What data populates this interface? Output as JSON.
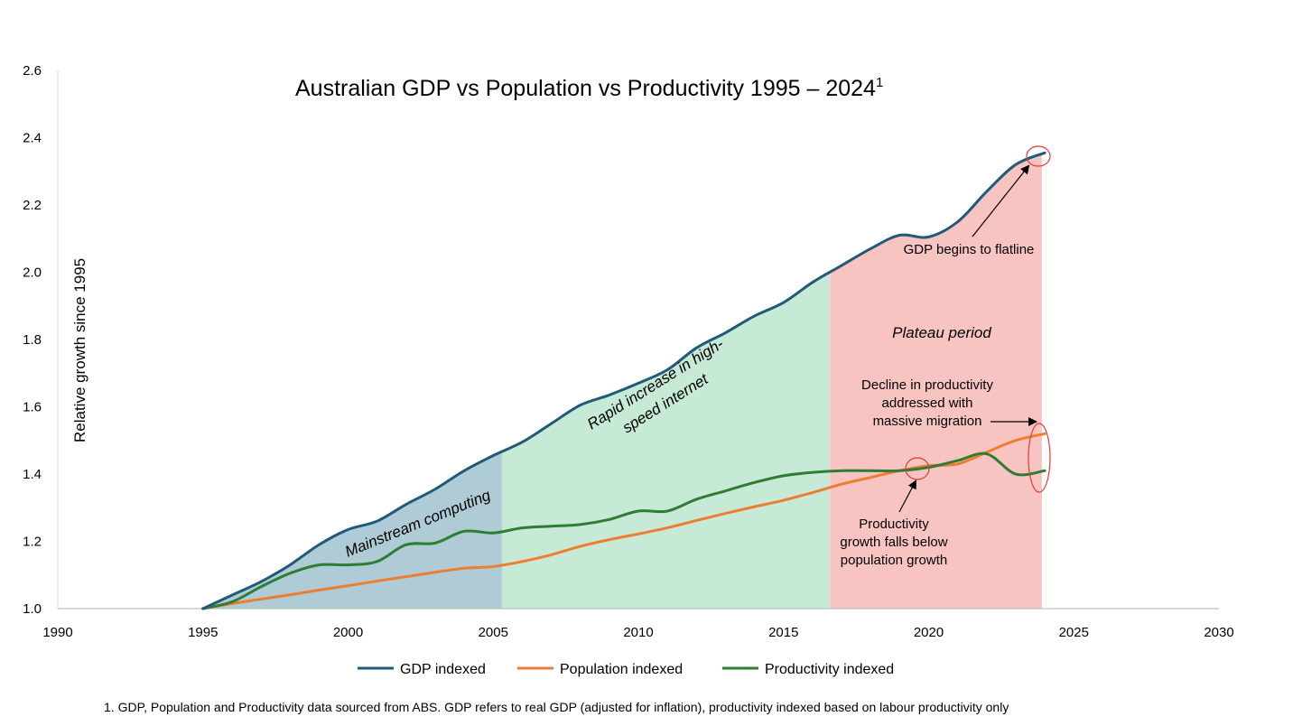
{
  "chart_data": {
    "type": "line",
    "title": "Australian GDP vs Population vs Productivity 1995 – 2024",
    "title_superscript": "1",
    "ylabel": "Relative growth since 1995",
    "xlabel": "",
    "xlim": [
      1990,
      2030
    ],
    "ylim": [
      1.0,
      2.6
    ],
    "x_ticks": [
      1990,
      1995,
      2000,
      2005,
      2010,
      2015,
      2020,
      2025,
      2030
    ],
    "y_ticks": [
      "1.0",
      "1.2",
      "1.4",
      "1.6",
      "1.8",
      "2.0",
      "2.2",
      "2.4",
      "2.6"
    ],
    "grid": false,
    "legend_position": "bottom",
    "series": [
      {
        "name": "GDP indexed",
        "color": "#1f5a7a",
        "x": [
          1995,
          1996,
          1997,
          1998,
          1999,
          2000,
          2001,
          2002,
          2003,
          2004,
          2005,
          2006,
          2007,
          2008,
          2009,
          2010,
          2011,
          2012,
          2013,
          2014,
          2015,
          2016,
          2017,
          2018,
          2019,
          2020,
          2021,
          2022,
          2023,
          2024
        ],
        "y": [
          1.0,
          1.04,
          1.08,
          1.13,
          1.19,
          1.235,
          1.26,
          1.31,
          1.355,
          1.41,
          1.455,
          1.495,
          1.55,
          1.605,
          1.635,
          1.67,
          1.71,
          1.775,
          1.82,
          1.87,
          1.91,
          1.97,
          2.02,
          2.07,
          2.11,
          2.105,
          2.15,
          2.24,
          2.32,
          2.355
        ]
      },
      {
        "name": "Population indexed",
        "color": "#ed7d31",
        "x": [
          1995,
          1996,
          1997,
          1998,
          1999,
          2000,
          2001,
          2002,
          2003,
          2004,
          2005,
          2006,
          2007,
          2008,
          2009,
          2010,
          2011,
          2012,
          2013,
          2014,
          2015,
          2016,
          2017,
          2018,
          2019,
          2020,
          2021,
          2022,
          2023,
          2024
        ],
        "y": [
          1.0,
          1.015,
          1.028,
          1.041,
          1.055,
          1.068,
          1.082,
          1.095,
          1.108,
          1.12,
          1.125,
          1.14,
          1.16,
          1.185,
          1.205,
          1.222,
          1.24,
          1.262,
          1.283,
          1.303,
          1.322,
          1.345,
          1.37,
          1.39,
          1.41,
          1.425,
          1.43,
          1.465,
          1.5,
          1.52
        ]
      },
      {
        "name": "Productivity indexed",
        "color": "#2e7d32",
        "x": [
          1995,
          1996,
          1997,
          1998,
          1999,
          2000,
          2001,
          2002,
          2003,
          2004,
          2005,
          2006,
          2007,
          2008,
          2009,
          2010,
          2011,
          2012,
          2013,
          2014,
          2015,
          2016,
          2017,
          2018,
          2019,
          2020,
          2021,
          2022,
          2023,
          2024
        ],
        "y": [
          1.0,
          1.02,
          1.065,
          1.105,
          1.13,
          1.13,
          1.14,
          1.19,
          1.195,
          1.23,
          1.225,
          1.24,
          1.245,
          1.25,
          1.265,
          1.29,
          1.29,
          1.325,
          1.35,
          1.375,
          1.395,
          1.405,
          1.41,
          1.41,
          1.41,
          1.42,
          1.44,
          1.46,
          1.4,
          1.41
        ]
      }
    ],
    "shaded_regions": [
      {
        "x_start": 1995,
        "x_end": 2005.3,
        "color": "#aecbd6",
        "label": "Mainstream computing"
      },
      {
        "x_start": 2005.3,
        "x_end": 2016.6,
        "color": "#c6ead5",
        "label": "Rapid increase in high-speed internet"
      },
      {
        "x_start": 2016.6,
        "x_end": 2023.9,
        "color": "#f8c4c2",
        "label": "Plateau period"
      }
    ],
    "annotations": [
      {
        "id": "gdp-flatline",
        "text": "GDP begins to flatline"
      },
      {
        "id": "decline-productivity",
        "lines": [
          "Decline in productivity",
          "addressed with",
          "massive migration"
        ]
      },
      {
        "id": "productivity-below-pop",
        "lines": [
          "Productivity",
          "growth falls below",
          "population growth"
        ]
      }
    ],
    "footnote": "1. GDP, Population and Productivity data sourced from ABS. GDP refers to real GDP (adjusted for inflation), productivity indexed based on labour productivity only"
  }
}
